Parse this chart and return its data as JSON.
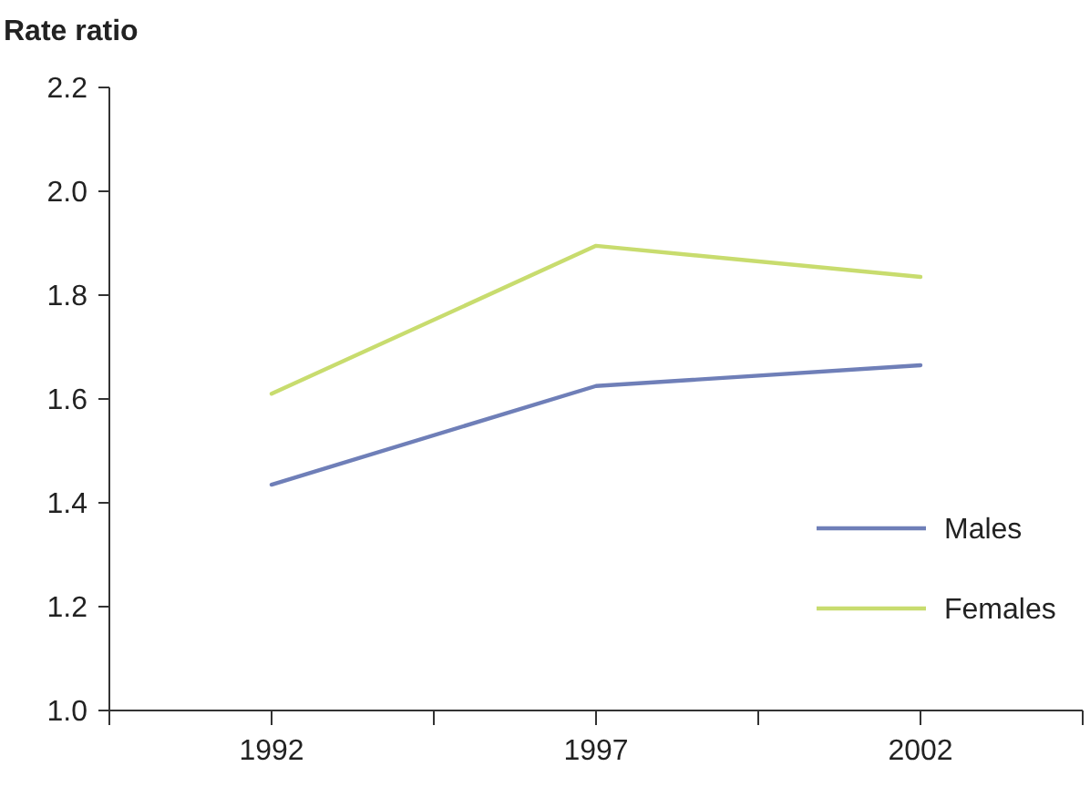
{
  "chart_data": {
    "type": "line",
    "ylabel": "Rate ratio",
    "x": [
      1992,
      1997,
      2002
    ],
    "xlim": [
      1989.5,
      2004.5
    ],
    "xticks": [
      {
        "value": 1989.5,
        "label": null
      },
      1992,
      {
        "value": 1994.5,
        "label": null
      },
      1997,
      {
        "value": 1999.5,
        "label": null
      },
      2002,
      {
        "value": 2004.5,
        "label": null
      }
    ],
    "ylim": [
      1.0,
      2.2
    ],
    "yticks": [
      {
        "value": 1.0,
        "label": "1.0"
      },
      1.2,
      1.4,
      1.6,
      1.8,
      {
        "value": 2.0,
        "label": "2.0"
      },
      2.2
    ],
    "series": [
      {
        "name": "Males",
        "color": "#6f7fb8",
        "values": [
          1.435,
          1.625,
          1.665
        ]
      },
      {
        "name": "Females",
        "color": "#c8dc6e",
        "values": [
          1.61,
          1.895,
          1.835
        ]
      }
    ],
    "grid": false,
    "legend": "bottom right",
    "marker": "none",
    "line_style": "solid"
  }
}
